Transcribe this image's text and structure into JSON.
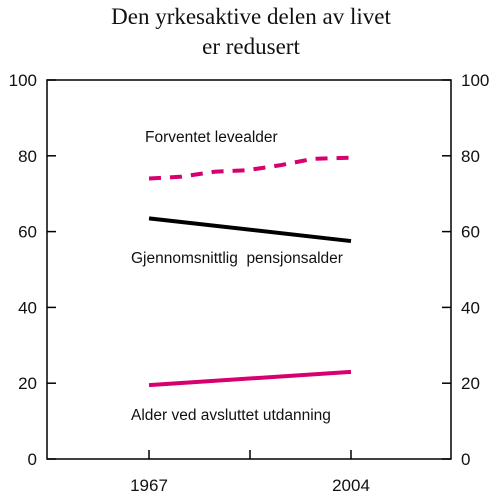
{
  "chart_data": {
    "type": "line",
    "title": "Den yrkesaktive delen av livet",
    "title_line2": "er redusert",
    "x": [
      1967,
      2004
    ],
    "x_tick_labels": [
      "1967",
      "2004"
    ],
    "ylim": [
      0,
      100
    ],
    "y_ticks": [
      0,
      20,
      40,
      60,
      80,
      100
    ],
    "y_tick_labels": [
      "0",
      "20",
      "40",
      "60",
      "80",
      "100"
    ],
    "grid": false,
    "series": [
      {
        "name": "Forventet levealder",
        "color": "#d6006f",
        "style": "dashed",
        "x": [
          1967,
          1973,
          1979,
          1985,
          1991,
          1997,
          2004
        ],
        "values": [
          74,
          74.5,
          75.8,
          76.2,
          77.5,
          79.2,
          79.5
        ]
      },
      {
        "name": "Gjennomsnittlig  pensjonsalder",
        "color": "#000000",
        "style": "solid",
        "x": [
          1967,
          2004
        ],
        "values": [
          63.5,
          57.5
        ]
      },
      {
        "name": "Alder ved avsluttet utdanning",
        "color": "#d6006f",
        "style": "solid",
        "x": [
          1967,
          2004
        ],
        "values": [
          19.5,
          23
        ]
      }
    ]
  }
}
